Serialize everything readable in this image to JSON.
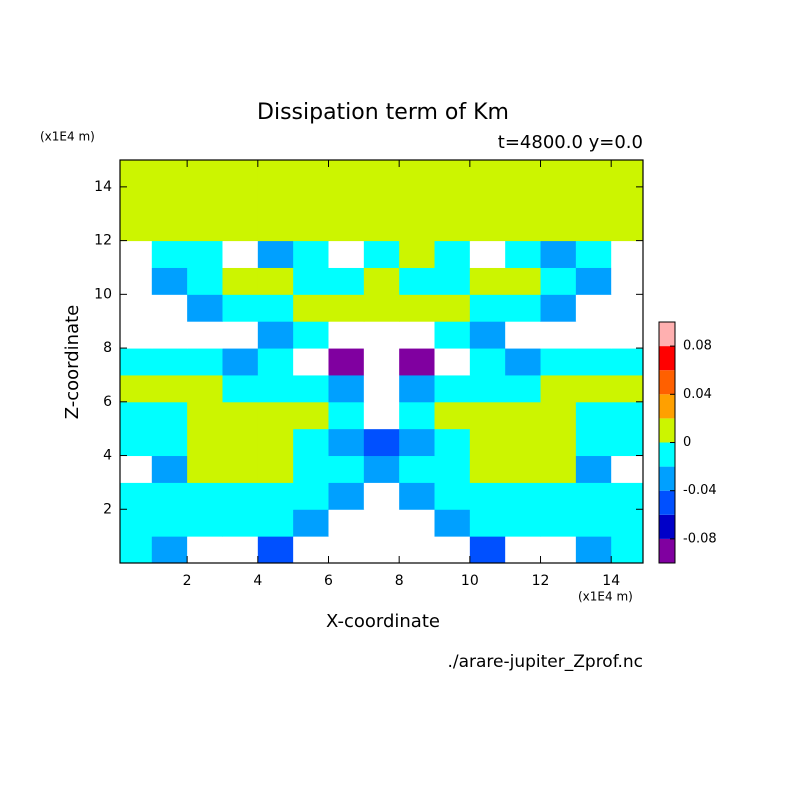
{
  "chart_data": {
    "type": "contour",
    "title": "Dissipation term of Km",
    "subtitle": "t=4800.0 y=0.0",
    "xlabel": "X-coordinate",
    "ylabel": "Z-coordinate",
    "xunit": "(x1E4 m)",
    "yunit": "(x1E4 m)",
    "source": "./arare-jupiter_Zprof.nc",
    "xlim": [
      0.1,
      14.9
    ],
    "ylim": [
      0,
      15
    ],
    "xticks": [
      2,
      4,
      6,
      8,
      10,
      12,
      14
    ],
    "yticks": [
      2,
      4,
      6,
      8,
      10,
      12,
      14
    ],
    "x": [
      0.5,
      1.5,
      2.5,
      3.5,
      4.5,
      5.5,
      6.5,
      7.5,
      8.5,
      9.5,
      10.5,
      11.5,
      12.5,
      13.5,
      14.5
    ],
    "y": [
      0.5,
      1.5,
      2.5,
      3.5,
      4.5,
      5.5,
      6.5,
      7.5,
      8.5,
      9.5,
      10.5,
      11.5,
      12.5,
      13.5,
      14.5
    ],
    "z": [
      [
        -0.01,
        -0.03,
        -0.15,
        -0.15,
        -0.05,
        -0.15,
        -0.15,
        -0.15,
        -0.15,
        -0.15,
        -0.05,
        -0.15,
        -0.15,
        -0.03,
        -0.01
      ],
      [
        -0.01,
        -0.01,
        -0.01,
        -0.01,
        -0.01,
        -0.03,
        -0.15,
        -0.15,
        -0.15,
        -0.03,
        -0.01,
        -0.01,
        -0.01,
        -0.01,
        -0.01
      ],
      [
        -0.01,
        -0.01,
        -0.01,
        -0.01,
        -0.01,
        -0.01,
        -0.03,
        -0.15,
        -0.03,
        -0.01,
        -0.01,
        -0.01,
        -0.01,
        -0.01,
        -0.01
      ],
      [
        -0.15,
        -0.03,
        0.01,
        0.01,
        0.01,
        -0.01,
        -0.01,
        -0.03,
        -0.01,
        -0.01,
        0.01,
        0.01,
        0.01,
        -0.03,
        -0.15
      ],
      [
        -0.01,
        -0.01,
        0.01,
        0.01,
        0.01,
        -0.01,
        -0.03,
        -0.05,
        -0.03,
        -0.01,
        0.01,
        0.01,
        0.01,
        -0.01,
        -0.01
      ],
      [
        -0.01,
        -0.01,
        0.01,
        0.01,
        0.01,
        0.01,
        -0.01,
        -0.15,
        -0.01,
        0.01,
        0.01,
        0.01,
        0.01,
        -0.01,
        -0.01
      ],
      [
        0.01,
        0.01,
        0.01,
        -0.01,
        -0.01,
        -0.01,
        -0.03,
        -0.15,
        -0.03,
        -0.01,
        -0.01,
        -0.01,
        0.01,
        0.01,
        0.01
      ],
      [
        -0.01,
        -0.01,
        -0.01,
        -0.03,
        -0.01,
        -0.15,
        -0.09,
        -0.15,
        -0.09,
        -0.15,
        -0.01,
        -0.03,
        -0.01,
        -0.01,
        -0.01
      ],
      [
        -0.15,
        -0.15,
        -0.15,
        -0.15,
        -0.03,
        -0.01,
        -0.15,
        -0.15,
        -0.15,
        -0.01,
        -0.03,
        -0.15,
        -0.15,
        -0.15,
        -0.15
      ],
      [
        -0.15,
        -0.15,
        -0.03,
        -0.01,
        -0.01,
        0.01,
        0.01,
        0.01,
        0.01,
        0.01,
        -0.01,
        -0.01,
        -0.03,
        -0.15,
        -0.15
      ],
      [
        -0.15,
        -0.03,
        -0.01,
        0.01,
        0.01,
        -0.01,
        -0.01,
        0.01,
        -0.01,
        -0.01,
        0.01,
        0.01,
        -0.01,
        -0.03,
        -0.15
      ],
      [
        -0.15,
        -0.01,
        -0.01,
        -0.15,
        -0.03,
        -0.01,
        -0.15,
        -0.01,
        0.01,
        -0.01,
        -0.15,
        -0.01,
        -0.03,
        -0.01,
        -0.15
      ],
      [
        0.01,
        0.01,
        0.01,
        0.01,
        0.01,
        0.01,
        0.01,
        0.01,
        0.01,
        0.01,
        0.01,
        0.01,
        0.01,
        0.01,
        0.01
      ],
      [
        0.01,
        0.01,
        0.01,
        0.01,
        0.01,
        0.01,
        0.01,
        0.01,
        0.01,
        0.01,
        0.01,
        0.01,
        0.01,
        0.01,
        0.01
      ],
      [
        0.01,
        0.01,
        0.01,
        0.01,
        0.01,
        0.01,
        0.01,
        0.01,
        0.01,
        0.01,
        0.01,
        0.01,
        0.01,
        0.01,
        0.01
      ]
    ],
    "levels": [
      -0.1,
      -0.08,
      -0.06,
      -0.04,
      -0.02,
      0,
      0.02,
      0.04,
      0.06,
      0.08,
      0.1
    ],
    "colors": [
      "#8000a0",
      "#0000c8",
      "#0050ff",
      "#00a0ff",
      "#00ffff",
      "#ccf500",
      "#ffa000",
      "#ff6000",
      "#ff0000",
      "#ffb0b0"
    ],
    "under_color": "#ffffff",
    "colorbar_ticks": [
      -0.08,
      -0.04,
      0,
      0.04,
      0.08
    ]
  }
}
